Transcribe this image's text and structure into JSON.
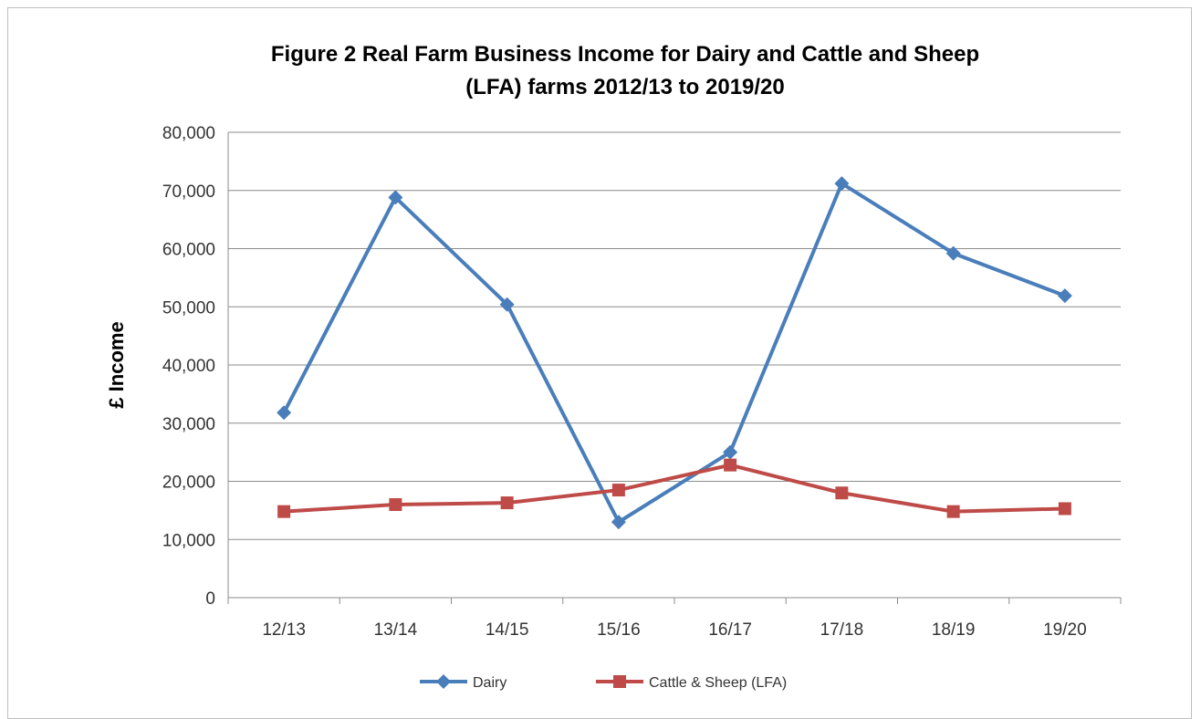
{
  "chart_data": {
    "type": "line",
    "title": "Figure 2  Real Farm Business Income for Dairy and Cattle and Sheep (LFA) farms 2012/13 to 2019/20",
    "title_lines": [
      "Figure 2  Real Farm Business Income for Dairy and Cattle and Sheep",
      "(LFA) farms 2012/13 to 2019/20"
    ],
    "xlabel": "",
    "ylabel": "£ Income",
    "categories": [
      "12/13",
      "13/14",
      "14/15",
      "15/16",
      "16/17",
      "17/18",
      "18/19",
      "19/20"
    ],
    "ylim": [
      0,
      80000
    ],
    "yticks": [
      0,
      10000,
      20000,
      30000,
      40000,
      50000,
      60000,
      70000,
      80000
    ],
    "ytick_labels": [
      "0",
      "10,000",
      "20,000",
      "30,000",
      "40,000",
      "50,000",
      "60,000",
      "70,000",
      "80,000"
    ],
    "grid": true,
    "legend_position": "bottom",
    "series": [
      {
        "name": "Dairy",
        "color": "#4a7ebb",
        "marker": "diamond",
        "values": [
          31800,
          68800,
          50400,
          13000,
          25000,
          71200,
          59200,
          51900
        ]
      },
      {
        "name": "Cattle & Sheep (LFA)",
        "color": "#be4b48",
        "marker": "square",
        "values": [
          14800,
          16000,
          16300,
          18500,
          22800,
          18000,
          14800,
          15300
        ]
      }
    ]
  }
}
